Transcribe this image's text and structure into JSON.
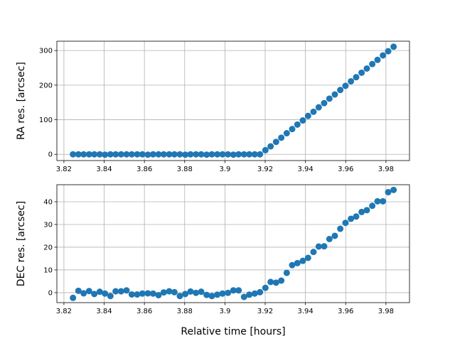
{
  "chart_data": [
    {
      "type": "scatter",
      "ylabel": "RA res. [arcsec]",
      "color": "#1f77b4",
      "grid": true,
      "xlim": [
        3.8165,
        3.9917
      ],
      "ylim": [
        -18,
        327
      ],
      "xticks": [
        3.82,
        3.84,
        3.86,
        3.88,
        3.9,
        3.92,
        3.94,
        3.96,
        3.98
      ],
      "yticks": [
        0,
        100,
        200,
        300
      ],
      "x": [
        3.8245,
        3.8272,
        3.8298,
        3.8325,
        3.8351,
        3.8378,
        3.8404,
        3.8431,
        3.8457,
        3.8484,
        3.8511,
        3.8537,
        3.8564,
        3.859,
        3.8617,
        3.8643,
        3.867,
        3.8696,
        3.8723,
        3.8749,
        3.8776,
        3.8803,
        3.8829,
        3.8856,
        3.8882,
        3.8909,
        3.8935,
        3.8962,
        3.8988,
        3.9015,
        3.9042,
        3.9068,
        3.9095,
        3.9121,
        3.9148,
        3.9174,
        3.9201,
        3.9227,
        3.9254,
        3.928,
        3.9307,
        3.9334,
        3.936,
        3.9387,
        3.9413,
        3.944,
        3.9466,
        3.9493,
        3.9519,
        3.9546,
        3.9573,
        3.9599,
        3.9626,
        3.9652,
        3.9679,
        3.9705,
        3.9732,
        3.9758,
        3.9785,
        3.9811,
        3.9838
      ],
      "values": [
        0,
        0,
        0,
        0,
        0,
        0,
        -1,
        0,
        0,
        0,
        0,
        0,
        0,
        0,
        -1,
        0,
        0,
        0,
        0,
        0,
        0,
        -1,
        0,
        0,
        0,
        -1,
        0,
        0,
        0,
        0,
        -1,
        0,
        0,
        0,
        0,
        0,
        12,
        23,
        36,
        48,
        61,
        73,
        86,
        98,
        111,
        123,
        136,
        148,
        161,
        173,
        186,
        198,
        211,
        223,
        236,
        248,
        261,
        273,
        286,
        298,
        311
      ]
    },
    {
      "type": "scatter",
      "ylabel": "DEC res. [arcsec]",
      "xlabel": "Relative time [hours]",
      "color": "#1f77b4",
      "grid": true,
      "xlim": [
        3.8165,
        3.9917
      ],
      "ylim": [
        -4.4,
        47.5
      ],
      "xticks": [
        3.82,
        3.84,
        3.86,
        3.88,
        3.9,
        3.92,
        3.94,
        3.96,
        3.98
      ],
      "yticks": [
        0,
        10,
        20,
        30,
        40
      ],
      "x": [
        3.8245,
        3.8272,
        3.8298,
        3.8325,
        3.8351,
        3.8378,
        3.8404,
        3.8431,
        3.8457,
        3.8484,
        3.8511,
        3.8537,
        3.8564,
        3.859,
        3.8617,
        3.8643,
        3.867,
        3.8696,
        3.8723,
        3.8749,
        3.8776,
        3.8803,
        3.8829,
        3.8856,
        3.8882,
        3.8909,
        3.8935,
        3.8962,
        3.8988,
        3.9015,
        3.9042,
        3.9068,
        3.9095,
        3.9121,
        3.9148,
        3.9174,
        3.9201,
        3.9227,
        3.9254,
        3.928,
        3.9307,
        3.9334,
        3.936,
        3.9387,
        3.9413,
        3.944,
        3.9466,
        3.9493,
        3.9519,
        3.9546,
        3.9573,
        3.9599,
        3.9626,
        3.9652,
        3.9679,
        3.9705,
        3.9732,
        3.9758,
        3.9785,
        3.9811,
        3.9838
      ],
      "values": [
        -2.3,
        0.8,
        -0.3,
        0.7,
        -0.6,
        0.4,
        -0.4,
        -1.5,
        0.6,
        0.6,
        1.0,
        -0.8,
        -0.8,
        -0.4,
        -0.3,
        -0.4,
        -1.1,
        0.1,
        0.6,
        0.2,
        -1.5,
        -0.6,
        0.5,
        -0.1,
        0.4,
        -1.0,
        -1.5,
        -0.9,
        -0.4,
        -0.1,
        1.0,
        1.0,
        -1.9,
        -0.9,
        -0.4,
        0.2,
        2.1,
        4.7,
        4.4,
        5.3,
        8.7,
        12.1,
        13.0,
        14.0,
        15.3,
        17.9,
        20.3,
        20.4,
        23.6,
        25.0,
        28.1,
        30.7,
        32.5,
        33.5,
        35.5,
        36.3,
        38.2,
        40.2,
        40.2,
        44.2,
        45.2
      ]
    }
  ]
}
